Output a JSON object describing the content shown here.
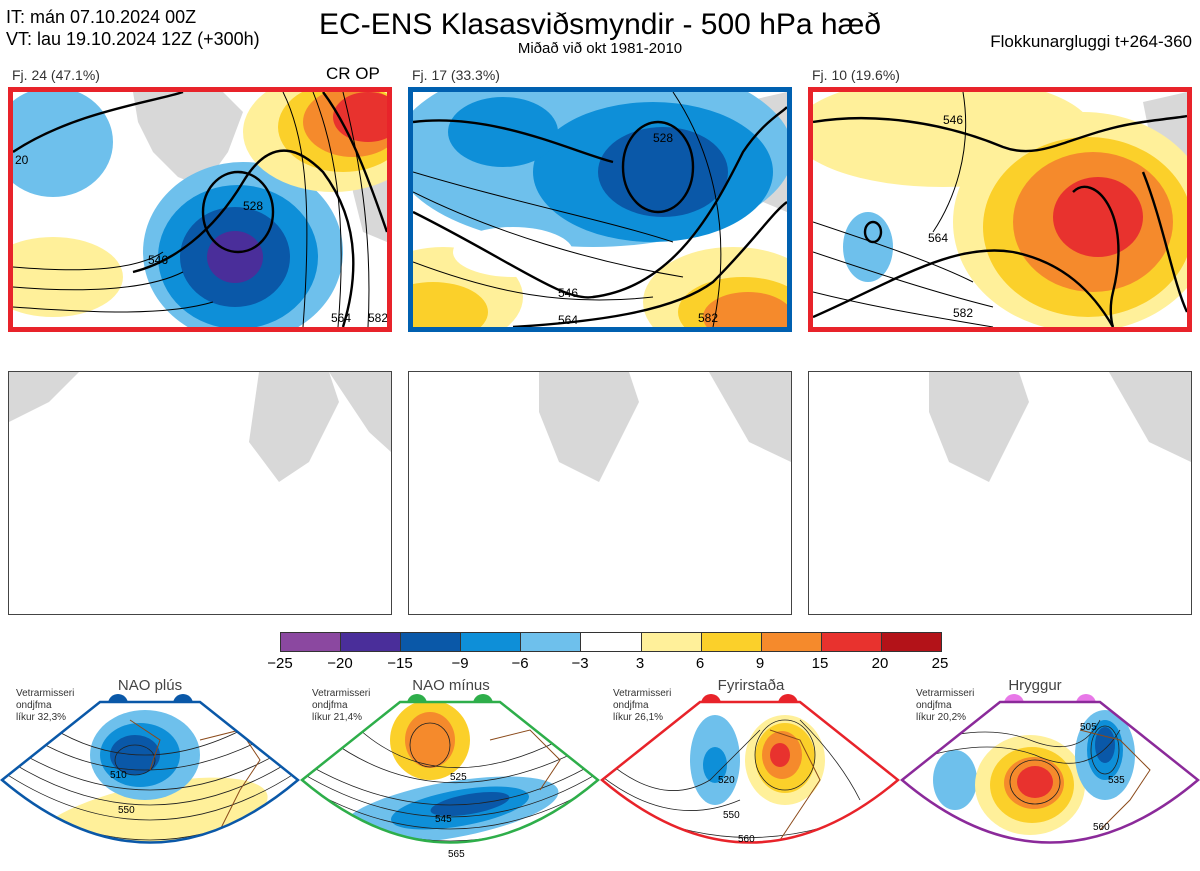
{
  "header": {
    "it_line": "IT: mán 07.10.2024 00Z",
    "vt_line": "VT: lau 19.10.2024 12Z  (+300h)",
    "title": "EC-ENS Klasasviðsmyndir - 500 hPa hæð",
    "subtitle": "Miðað við okt 1981-2010",
    "window": "Flokkunargluggi t+264-360"
  },
  "clusters": [
    {
      "label": "Fj. 24 (47.1%)",
      "tag": "CR OP",
      "border": "#e8232a",
      "contours": [
        "528",
        "546",
        "564",
        "582",
        "20"
      ]
    },
    {
      "label": "Fj. 17 (33.3%)",
      "tag": "",
      "border": "#0060b0",
      "contours": [
        "528",
        "546",
        "564",
        "582"
      ]
    },
    {
      "label": "Fj. 10 (19.6%)",
      "tag": "",
      "border": "#e8232a",
      "contours": [
        "546",
        "564",
        "582"
      ]
    }
  ],
  "colorbar": {
    "ticks": [
      "−25",
      "−20",
      "−15",
      "−9",
      "−6",
      "−3",
      "3",
      "6",
      "9",
      "15",
      "20",
      "25"
    ],
    "colors": [
      "#8b48a0",
      "#4a2e9a",
      "#0a58a8",
      "#0e8fd8",
      "#6ec0ec",
      "#ffffff",
      "#fff09a",
      "#fbd02a",
      "#f58a2c",
      "#e8322e",
      "#b31218"
    ]
  },
  "regimes": [
    {
      "name": "NAO plús",
      "desc1": "Vetrarmisseri",
      "desc2": "ondjfma",
      "desc3": "líkur 32,3%",
      "color": "#0a58a8",
      "contours": [
        "510",
        "550"
      ]
    },
    {
      "name": "NAO mínus",
      "desc1": "Vetrarmisseri",
      "desc2": "ondjfma",
      "desc3": "líkur 21,4%",
      "color": "#2eae4a",
      "contours": [
        "525",
        "545",
        "565"
      ]
    },
    {
      "name": "Fyrirstaða",
      "desc1": "Vetrarmisseri",
      "desc2": "ondjfma",
      "desc3": "líkur 26,1%",
      "color": "#e8232a",
      "contours": [
        "520",
        "550",
        "560"
      ]
    },
    {
      "name": "Hryggur",
      "desc1": "Vetrarmisseri",
      "desc2": "ondjfma",
      "desc3": "líkur 20,2%",
      "color": "#e878e8",
      "contours": [
        "505",
        "535",
        "560"
      ]
    }
  ]
}
